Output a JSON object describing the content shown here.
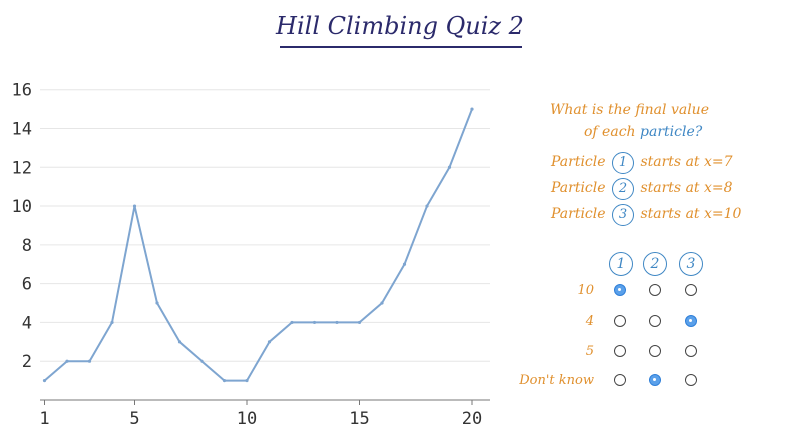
{
  "title": "Hill Climbing Quiz 2",
  "chart_data": {
    "type": "line",
    "x": [
      1,
      2,
      3,
      4,
      5,
      6,
      7,
      8,
      9,
      10,
      11,
      12,
      13,
      14,
      15,
      16,
      17,
      18,
      19,
      20
    ],
    "values": [
      1,
      2,
      2,
      4,
      10,
      5,
      3,
      2,
      1,
      1,
      3,
      4,
      4,
      4,
      4,
      5,
      7,
      10,
      12,
      15
    ],
    "xticks": [
      1,
      5,
      10,
      15,
      20
    ],
    "yticks": [
      2,
      4,
      6,
      8,
      10,
      12,
      14,
      16
    ],
    "ylim": [
      0,
      16.5
    ],
    "grid": true,
    "line_color": "#7ea5d0"
  },
  "question": {
    "line1": "What is the final value",
    "line2_prefix": "of each",
    "line2_word": "particle?",
    "particles": [
      {
        "label": "Particle",
        "num": "1",
        "text": "starts at x=7"
      },
      {
        "label": "Particle",
        "num": "2",
        "text": "starts at x=8"
      },
      {
        "label": "Particle",
        "num": "3",
        "text": "starts at x=10"
      }
    ]
  },
  "grid": {
    "headers": [
      "1",
      "2",
      "3"
    ],
    "rows": [
      {
        "label": "10",
        "selected": [
          true,
          false,
          false
        ]
      },
      {
        "label": "4",
        "selected": [
          false,
          false,
          true
        ]
      },
      {
        "label": "5",
        "selected": [
          false,
          false,
          false
        ]
      },
      {
        "label": "Don't know",
        "selected": [
          false,
          true,
          false
        ]
      }
    ]
  },
  "colors": {
    "accent": "#e0902e",
    "blue": "#3f87c4",
    "title": "#2b2a6b"
  }
}
